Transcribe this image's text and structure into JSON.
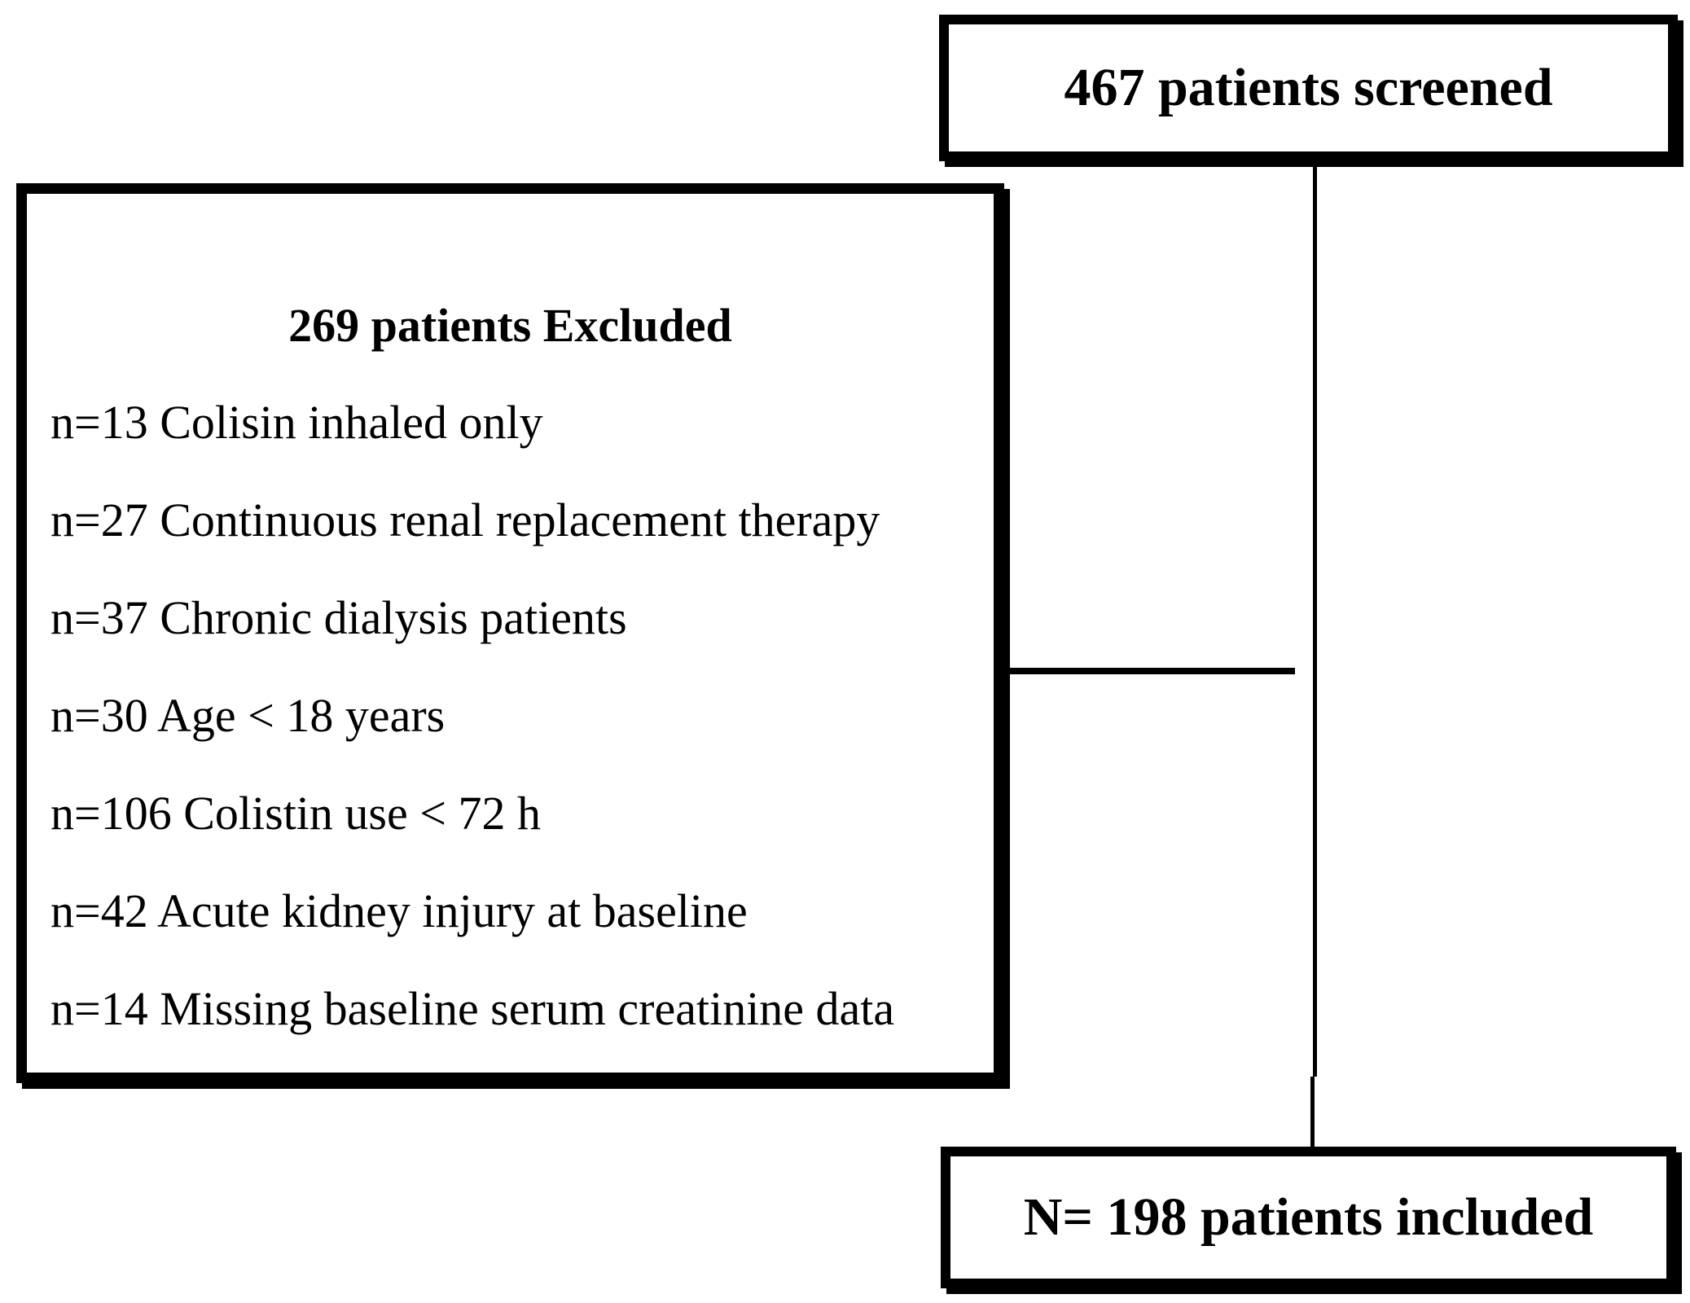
{
  "screened_box": {
    "label": "467 patients screened"
  },
  "exclusion_box": {
    "title": "269 patients Excluded",
    "items": [
      "n=13 Colisin inhaled only",
      "n=27 Continuous renal replacement therapy",
      "n=37 Chronic dialysis patients",
      "n=30 Age < 18 years",
      "n=106 Colistin use < 72 h",
      "n=42 Acute kidney injury at baseline",
      "n=14 Missing baseline serum creatinine data"
    ]
  },
  "included_box": {
    "label": "N= 198 patients included"
  },
  "colors": {
    "background": "#ffffff",
    "border": "#000000",
    "line": "#000000",
    "text": "#000000"
  }
}
